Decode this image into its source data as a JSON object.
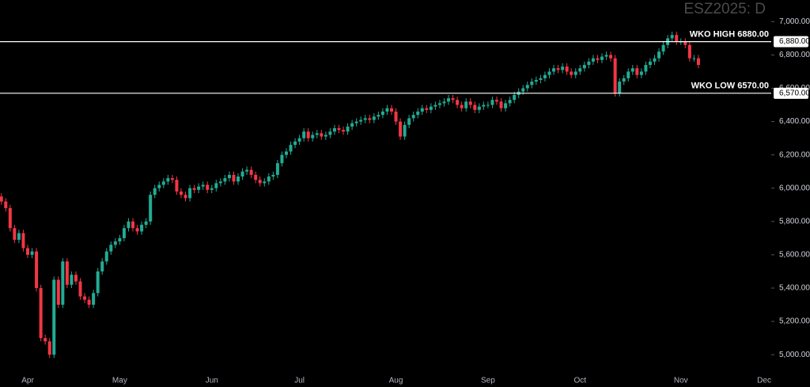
{
  "chart_data": {
    "type": "candlestick",
    "title": "ESZ2025: D",
    "categories": [
      null,
      null,
      null,
      null,
      null,
      null,
      "Apr",
      null,
      null,
      null,
      null,
      null,
      null,
      null,
      null,
      null,
      null,
      null,
      null,
      null,
      null,
      null,
      null,
      null,
      null,
      null,
      null,
      "May",
      null,
      null,
      null,
      null,
      null,
      null,
      null,
      null,
      null,
      null,
      null,
      null,
      null,
      null,
      null,
      null,
      null,
      null,
      null,
      null,
      "Jun",
      null,
      null,
      null,
      null,
      null,
      null,
      null,
      null,
      null,
      null,
      null,
      null,
      null,
      null,
      null,
      null,
      null,
      null,
      null,
      "Jul",
      null,
      null,
      null,
      null,
      null,
      null,
      null,
      null,
      null,
      null,
      null,
      null,
      null,
      null,
      null,
      null,
      null,
      null,
      null,
      null,
      null,
      "Aug",
      null,
      null,
      null,
      null,
      null,
      null,
      null,
      null,
      null,
      null,
      null,
      null,
      null,
      null,
      null,
      null,
      null,
      null,
      null,
      null,
      "Sep",
      null,
      null,
      null,
      null,
      null,
      null,
      null,
      null,
      null,
      null,
      null,
      null,
      null,
      null,
      null,
      null,
      null,
      null,
      null,
      null,
      "Oct",
      null,
      null,
      null,
      null,
      null,
      null,
      null,
      null,
      null,
      null,
      null,
      null,
      null,
      null,
      null,
      null,
      null,
      null,
      null,
      null,
      null,
      null,
      "Nov",
      null,
      null,
      null,
      null,
      null,
      null,
      null,
      null,
      null,
      null,
      null,
      null,
      null,
      null,
      null,
      null,
      null,
      null,
      "Dec"
    ],
    "open": [
      5950,
      5920,
      5880,
      5760,
      5690,
      5730,
      5640,
      5600,
      5620,
      5400,
      5100,
      5080,
      5000,
      5450,
      5300,
      5560,
      5420,
      5480,
      5440,
      5350,
      5330,
      5300,
      5370,
      5500,
      5560,
      5620,
      5660,
      5680,
      5700,
      5760,
      5800,
      5760,
      5740,
      5780,
      5800,
      5960,
      6000,
      6020,
      6040,
      6060,
      6050,
      5980,
      5960,
      5940,
      6000,
      5990,
      6010,
      6020,
      5990,
      6000,
      6030,
      6040,
      6060,
      6080,
      6040,
      6070,
      6100,
      6110,
      6080,
      6050,
      6030,
      6040,
      6070,
      6080,
      6150,
      6200,
      6220,
      6260,
      6280,
      6300,
      6340,
      6300,
      6320,
      6330,
      6310,
      6320,
      6340,
      6360,
      6350,
      6340,
      6370,
      6390,
      6400,
      6410,
      6420,
      6410,
      6430,
      6440,
      6460,
      6480,
      6460,
      6400,
      6310,
      6380,
      6420,
      6440,
      6460,
      6480,
      6470,
      6490,
      6500,
      6510,
      6520,
      6540,
      6530,
      6500,
      6480,
      6520,
      6500,
      6470,
      6490,
      6500,
      6500,
      6530,
      6520,
      6480,
      6510,
      6530,
      6560,
      6580,
      6600,
      6620,
      6640,
      6650,
      6660,
      6680,
      6700,
      6720,
      6710,
      6730,
      6700,
      6680,
      6700,
      6720,
      6740,
      6760,
      6780,
      6770,
      6790,
      6800,
      6780,
      6570,
      6640,
      6660,
      6700,
      6720,
      6680,
      6700,
      6740,
      6760,
      6780,
      6820,
      6860,
      6900,
      6920,
      6880,
      6880,
      6860,
      6780,
      6780,
      null,
      null,
      null,
      null,
      null,
      null,
      null,
      null,
      null,
      null,
      null,
      null,
      null,
      null,
      null
    ],
    "high": [
      5970,
      5940,
      5900,
      5780,
      5750,
      5750,
      5660,
      5640,
      5640,
      5420,
      5120,
      5100,
      5470,
      5470,
      5580,
      5580,
      5500,
      5500,
      5460,
      5370,
      5350,
      5390,
      5520,
      5580,
      5640,
      5680,
      5700,
      5720,
      5780,
      5820,
      5820,
      5780,
      5800,
      5820,
      5980,
      6020,
      6040,
      6060,
      6080,
      6080,
      6070,
      6000,
      5980,
      6020,
      6020,
      6030,
      6040,
      6040,
      6020,
      6050,
      6060,
      6080,
      6100,
      6100,
      6090,
      6120,
      6130,
      6130,
      6100,
      6070,
      6060,
      6090,
      6100,
      6170,
      6220,
      6240,
      6280,
      6300,
      6320,
      6360,
      6360,
      6340,
      6350,
      6350,
      6340,
      6360,
      6380,
      6380,
      6370,
      6390,
      6410,
      6420,
      6430,
      6440,
      6440,
      6450,
      6460,
      6480,
      6500,
      6500,
      6480,
      6420,
      6400,
      6440,
      6460,
      6480,
      6500,
      6500,
      6510,
      6520,
      6530,
      6540,
      6560,
      6560,
      6550,
      6520,
      6540,
      6540,
      6520,
      6510,
      6520,
      6520,
      6550,
      6550,
      6540,
      6530,
      6550,
      6580,
      6600,
      6620,
      6640,
      6660,
      6670,
      6680,
      6700,
      6720,
      6740,
      6740,
      6750,
      6750,
      6720,
      6720,
      6740,
      6760,
      6780,
      6800,
      6800,
      6810,
      6820,
      6820,
      6800,
      6660,
      6680,
      6720,
      6740,
      6740,
      6720,
      6760,
      6780,
      6800,
      6840,
      6880,
      6920,
      6940,
      6940,
      6900,
      6900,
      6880,
      6800,
      6800,
      null,
      null,
      null,
      null,
      null,
      null,
      null,
      null,
      null,
      null,
      null,
      null,
      null,
      null,
      null
    ],
    "low": [
      5900,
      5860,
      5740,
      5670,
      5670,
      5620,
      5580,
      5580,
      5380,
      5080,
      5060,
      4980,
      4980,
      5280,
      5280,
      5400,
      5400,
      5420,
      5330,
      5310,
      5280,
      5280,
      5350,
      5480,
      5540,
      5600,
      5640,
      5660,
      5680,
      5740,
      5740,
      5720,
      5720,
      5760,
      5780,
      5940,
      5980,
      6000,
      6020,
      6030,
      5960,
      5940,
      5920,
      5920,
      5970,
      5970,
      5990,
      5970,
      5970,
      5980,
      6010,
      6020,
      6040,
      6020,
      6020,
      6050,
      6080,
      6060,
      6030,
      6010,
      6010,
      6020,
      6050,
      6060,
      6130,
      6180,
      6200,
      6240,
      6260,
      6280,
      6280,
      6280,
      6300,
      6290,
      6290,
      6300,
      6320,
      6330,
      6320,
      6320,
      6350,
      6370,
      6380,
      6390,
      6390,
      6390,
      6410,
      6420,
      6440,
      6440,
      6380,
      6290,
      6290,
      6360,
      6400,
      6420,
      6440,
      6450,
      6450,
      6470,
      6480,
      6490,
      6500,
      6510,
      6480,
      6460,
      6460,
      6480,
      6450,
      6450,
      6470,
      6480,
      6480,
      6500,
      6460,
      6460,
      6490,
      6510,
      6540,
      6560,
      6580,
      6600,
      6620,
      6630,
      6640,
      6660,
      6680,
      6690,
      6690,
      6680,
      6660,
      6660,
      6680,
      6700,
      6720,
      6740,
      6750,
      6750,
      6770,
      6760,
      6550,
      6550,
      6620,
      6640,
      6680,
      6660,
      6660,
      6680,
      6720,
      6740,
      6760,
      6800,
      6840,
      6880,
      6860,
      6860,
      6840,
      6760,
      6760,
      6720,
      null,
      null,
      null,
      null,
      null,
      null,
      null,
      null,
      null,
      null,
      null,
      null,
      null,
      null,
      null
    ],
    "close": [
      5920,
      5880,
      5760,
      5690,
      5730,
      5640,
      5600,
      5620,
      5400,
      5100,
      5080,
      5000,
      5450,
      5300,
      5560,
      5420,
      5480,
      5440,
      5350,
      5330,
      5300,
      5370,
      5500,
      5560,
      5620,
      5660,
      5680,
      5700,
      5760,
      5800,
      5760,
      5740,
      5780,
      5800,
      5960,
      6000,
      6020,
      6040,
      6060,
      6050,
      5980,
      5960,
      5940,
      6000,
      5990,
      6010,
      6020,
      5990,
      6000,
      6030,
      6040,
      6060,
      6080,
      6040,
      6070,
      6100,
      6110,
      6080,
      6050,
      6030,
      6040,
      6070,
      6080,
      6150,
      6200,
      6220,
      6260,
      6280,
      6300,
      6340,
      6300,
      6320,
      6330,
      6310,
      6320,
      6340,
      6360,
      6350,
      6340,
      6370,
      6390,
      6400,
      6410,
      6420,
      6410,
      6430,
      6440,
      6460,
      6480,
      6460,
      6400,
      6310,
      6380,
      6420,
      6440,
      6460,
      6480,
      6470,
      6490,
      6500,
      6510,
      6520,
      6540,
      6530,
      6500,
      6480,
      6520,
      6500,
      6470,
      6490,
      6500,
      6500,
      6530,
      6520,
      6480,
      6510,
      6530,
      6560,
      6580,
      6600,
      6620,
      6640,
      6650,
      6660,
      6680,
      6700,
      6720,
      6710,
      6730,
      6700,
      6680,
      6700,
      6720,
      6740,
      6760,
      6780,
      6770,
      6790,
      6800,
      6780,
      6570,
      6640,
      6660,
      6700,
      6720,
      6680,
      6700,
      6740,
      6760,
      6780,
      6820,
      6860,
      6900,
      6920,
      6880,
      6880,
      6860,
      6780,
      6780,
      6740,
      null,
      null,
      null,
      null,
      null,
      null,
      null,
      null,
      null,
      null,
      null,
      null,
      null,
      null,
      null
    ],
    "up_color": "#22ab94",
    "down_color": "#f23645",
    "ylim": [
      4920,
      7130
    ],
    "yticks": [
      {
        "value": 5000,
        "label": "5,000.00"
      },
      {
        "value": 5200,
        "label": "5,200.00"
      },
      {
        "value": 5400,
        "label": "5,400.00"
      },
      {
        "value": 5600,
        "label": "5,600.00"
      },
      {
        "value": 5800,
        "label": "5,800.00"
      },
      {
        "value": 6000,
        "label": "6,000.00"
      },
      {
        "value": 6200,
        "label": "6,200.00"
      },
      {
        "value": 6400,
        "label": "6,400.00"
      },
      {
        "value": 6600,
        "label": "6,600.00"
      },
      {
        "value": 6800,
        "label": "6,800.00"
      },
      {
        "value": 7000,
        "label": "7,000.00"
      }
    ],
    "levels": [
      {
        "label": "WKO HIGH 6880.00",
        "value": 6880,
        "axis_label": "6,880.00"
      },
      {
        "label": "WKO LOW 6570.00",
        "value": 6570,
        "axis_label": "6,570.00"
      }
    ]
  }
}
